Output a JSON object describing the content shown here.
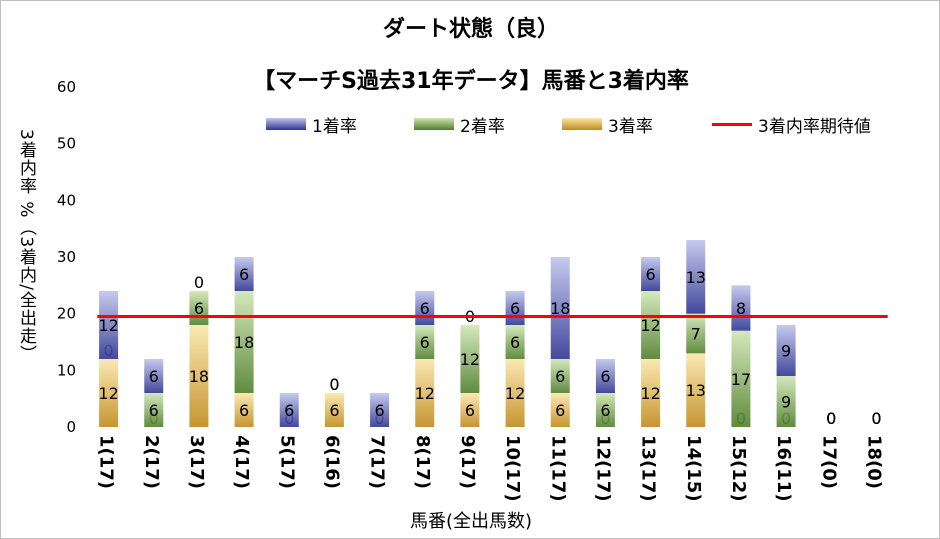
{
  "chart_data": {
    "type": "bar",
    "stacked": true,
    "title": "ダート状態（良）",
    "subtitle": "【マーチS過去31年データ】馬番と3着内率",
    "xlabel": "馬番(全出馬数)",
    "ylabel": "3着内率 %（3着内/全出走）",
    "ylim": [
      0,
      60
    ],
    "yticks": [
      0,
      10,
      20,
      30,
      40,
      50,
      60
    ],
    "legend_position": "top",
    "categories": [
      "1(17)",
      "2(17)",
      "3(17)",
      "4(17)",
      "5(17)",
      "6(16)",
      "7(17)",
      "8(17)",
      "9(17)",
      "10(17)",
      "11(17)",
      "12(17)",
      "13(17)",
      "14(15)",
      "15(12)",
      "16(11)",
      "17(0)",
      "18(0)"
    ],
    "series": [
      {
        "name": "3着率",
        "values": [
          12,
          0,
          18,
          6,
          0,
          6,
          0,
          12,
          6,
          12,
          6,
          0,
          12,
          13,
          0,
          0,
          0,
          0
        ]
      },
      {
        "name": "2着率",
        "values": [
          0,
          6,
          6,
          18,
          0,
          0,
          0,
          6,
          12,
          6,
          6,
          6,
          12,
          7,
          17,
          9,
          0,
          0
        ]
      },
      {
        "name": "1着率",
        "values": [
          12,
          6,
          0,
          6,
          6,
          0,
          6,
          6,
          0,
          6,
          18,
          6,
          6,
          13,
          8,
          9,
          0,
          0
        ]
      }
    ],
    "expected_line": {
      "name": "3着内率期待値",
      "value": 19.5
    },
    "colors": {
      "1着率": "#6870b8",
      "2着率": "#7aab4a",
      "3着率": "#e8b339",
      "期待値": "#ff0000"
    }
  },
  "legend": [
    {
      "label": "1着率",
      "key": "1着率",
      "kind": "bar"
    },
    {
      "label": "2着率",
      "key": "2着率",
      "kind": "bar"
    },
    {
      "label": "3着率",
      "key": "3着率",
      "kind": "bar"
    },
    {
      "label": "3着内率期待値",
      "key": "期待値",
      "kind": "line"
    }
  ]
}
